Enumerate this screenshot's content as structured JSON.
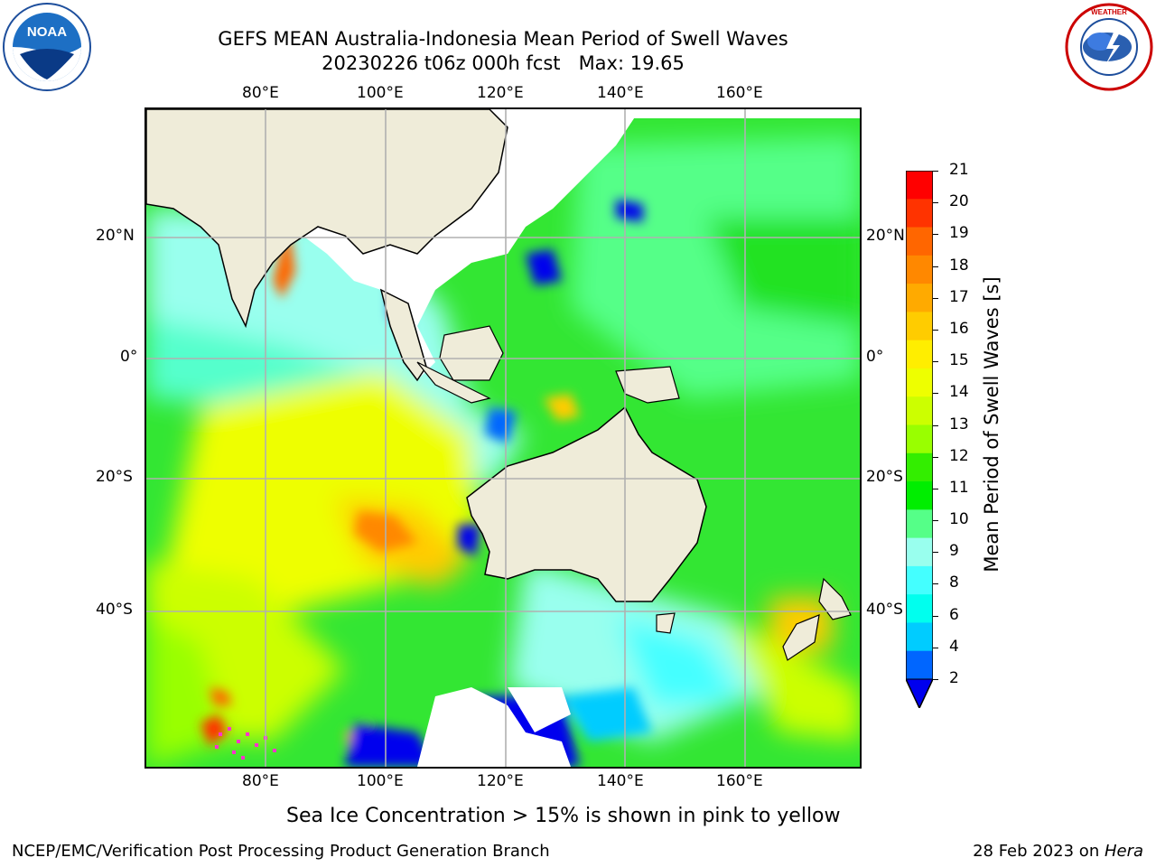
{
  "header": {
    "title_line1": "GEFS MEAN Australia-Indonesia Mean Period of Swell Waves",
    "title_line2": "20230226 t06z 000h fcst   Max: 19.65"
  },
  "logos": {
    "left": {
      "name": "noaa-logo",
      "text": "NOAA"
    },
    "right": {
      "name": "nws-logo",
      "text": "NATIONAL WEATHER SERVICE"
    }
  },
  "map": {
    "lon_ticks_top": [
      "80°E",
      "100°E",
      "120°E",
      "140°E",
      "160°E"
    ],
    "lon_ticks_bottom": [
      "80°E",
      "100°E",
      "120°E",
      "140°E",
      "160°E"
    ],
    "lat_ticks_left": [
      "20°N",
      "0°",
      "20°S",
      "40°S"
    ],
    "lat_ticks_right": [
      "20°N",
      "0°",
      "20°S",
      "40°S"
    ]
  },
  "colorbar": {
    "label": "Mean Period of Swell Waves [s]",
    "ticks": [
      "21",
      "20",
      "19",
      "18",
      "17",
      "16",
      "15",
      "14",
      "13",
      "12",
      "11",
      "10",
      "9",
      "8",
      "6",
      "4",
      "2"
    ],
    "colors": [
      "#ff0000",
      "#ff3300",
      "#ff6600",
      "#ff8800",
      "#ffaa00",
      "#ffcc00",
      "#ffee00",
      "#eeff00",
      "#ccff00",
      "#99ff00",
      "#33ee00",
      "#00ee00",
      "#55ff88",
      "#99ffee",
      "#44ffff",
      "#00ffee",
      "#00ccff",
      "#0066ff"
    ],
    "extend_color": "#0000ee"
  },
  "caption": "Sea Ice Concentration > 15% is shown in pink to yellow",
  "footer": {
    "left": "NCEP/EMC/Verification Post Processing Product Generation Branch",
    "right_prefix": "28 Feb 2023 on ",
    "right_machine": "Hera"
  }
}
